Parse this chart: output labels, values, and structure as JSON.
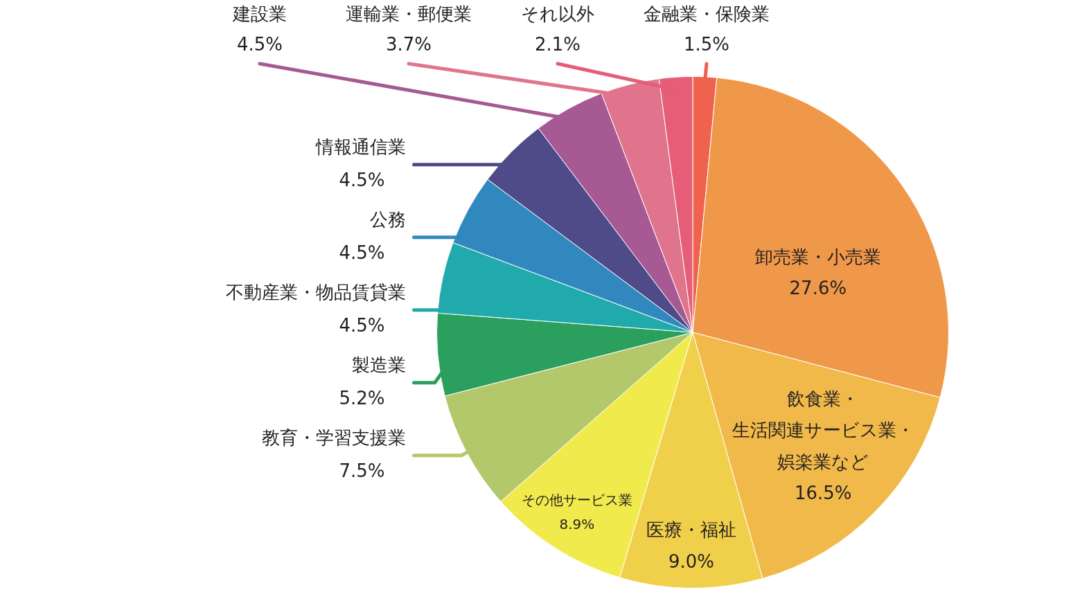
{
  "chart_data": {
    "type": "pie",
    "categories": [
      "金融業・保険業",
      "卸売業・小売業",
      "飲食業・生活関連サービス業・娯楽業など",
      "医療・福祉",
      "その他サービス業",
      "教育・学習支援業",
      "製造業",
      "不動産業・物品賃貸業",
      "公務",
      "情報通信業",
      "建設業",
      "運輸業・郵便業",
      "それ以外"
    ],
    "values": [
      1.5,
      27.6,
      16.5,
      9.0,
      8.9,
      7.5,
      5.2,
      4.5,
      4.5,
      4.5,
      4.5,
      3.7,
      2.1
    ],
    "value_labels": [
      "1.5%",
      "27.6%",
      "16.5%",
      "9.0%",
      "8.9%",
      "7.5%",
      "5.2%",
      "4.5%",
      "4.5%",
      "4.5%",
      "4.5%",
      "3.7%",
      "2.1%"
    ],
    "colors": [
      "#ef634e",
      "#f0984a",
      "#f0b94a",
      "#f0d04a",
      "#f1ea4c",
      "#b2c86a",
      "#2b9f5e",
      "#21aaab",
      "#3088bf",
      "#4f4b88",
      "#a65993",
      "#e0748c",
      "#e55d76"
    ]
  }
}
